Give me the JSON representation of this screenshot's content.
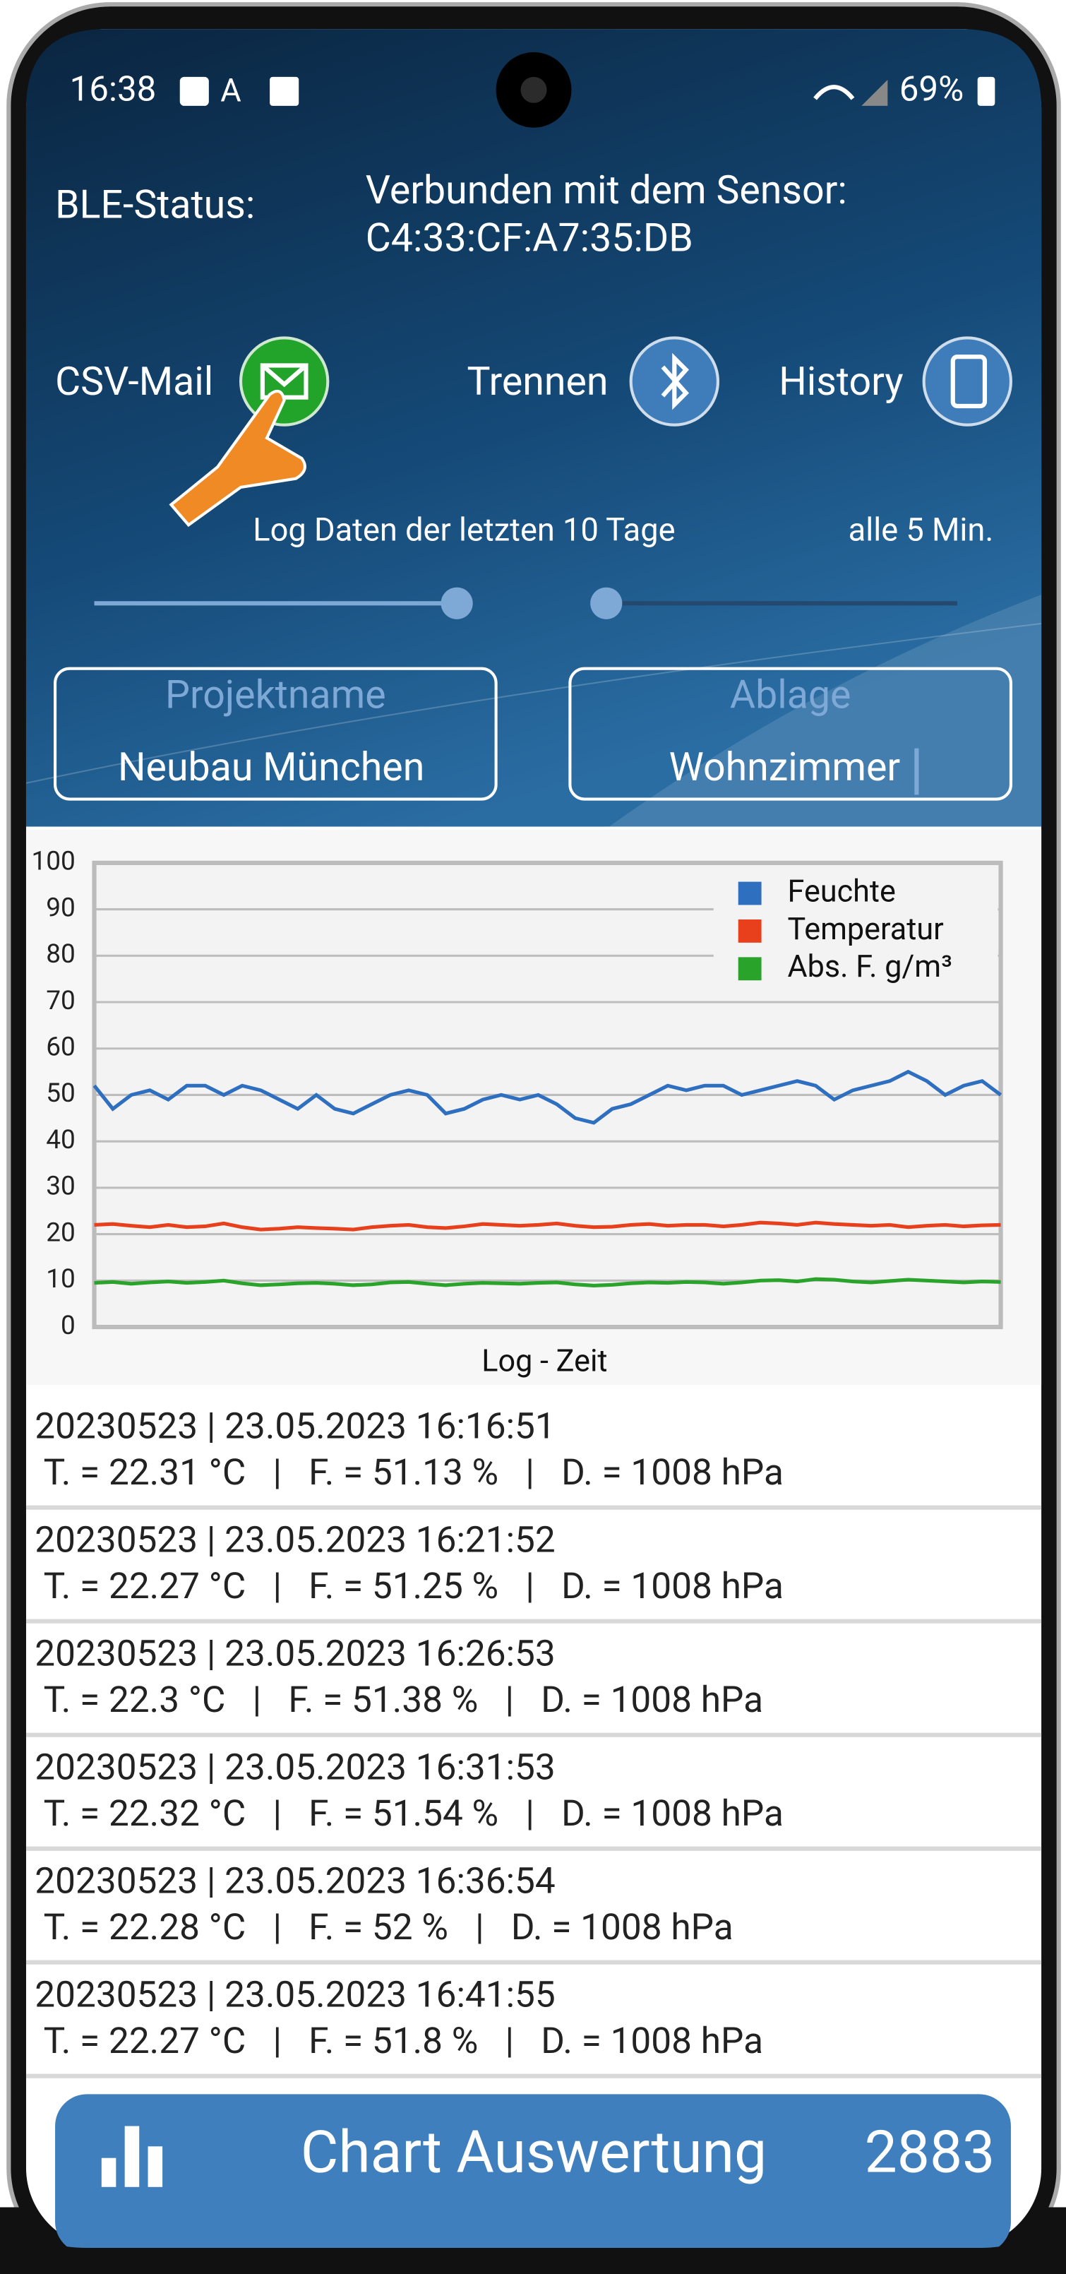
{
  "status": {
    "time": "16:38",
    "battery": "69%"
  },
  "ble": {
    "label": "BLE-Status:",
    "line1": "Verbunden mit dem Sensor:",
    "line2": "C4:33:CF:A7:35:DB"
  },
  "actions": [
    {
      "label": "CSV-Mail"
    },
    {
      "label": "Trennen"
    },
    {
      "label": "History"
    }
  ],
  "log_label": "Log Daten der letzten 10 Tage",
  "interval": "alle 5 Min.",
  "fields": [
    {
      "label": "Projektname",
      "value": "Neubau München"
    },
    {
      "label": "Ablage",
      "value": "Wohnzimmer"
    }
  ],
  "chart_data": {
    "type": "line",
    "x_label": "Log - Zeit",
    "ylim": [
      0,
      100
    ],
    "yticks": [
      0,
      10,
      20,
      30,
      40,
      50,
      60,
      70,
      80,
      90,
      100
    ],
    "grid": true,
    "legend": "top-right",
    "series": [
      {
        "name": "Feuchte",
        "color": "#2f6fbf",
        "values": [
          52,
          47,
          50,
          51,
          49,
          52,
          52,
          50,
          52,
          51,
          49,
          47,
          50,
          47,
          46,
          48,
          50,
          51,
          50,
          46,
          47,
          49,
          50,
          49,
          50,
          48,
          45,
          44,
          47,
          48,
          50,
          52,
          51,
          52,
          52,
          50,
          51,
          52,
          53,
          52,
          49,
          51,
          52,
          53,
          55,
          53,
          50,
          52,
          53,
          50
        ]
      },
      {
        "name": "Temperatur",
        "color": "#e8401c",
        "values": [
          22,
          22.2,
          21.8,
          21.5,
          22,
          21.5,
          21.7,
          22.3,
          21.5,
          21,
          21.2,
          21.5,
          21.3,
          21.2,
          21,
          21.5,
          21.8,
          22,
          21.5,
          21.3,
          21.7,
          22.2,
          22,
          21.8,
          22,
          22.3,
          21.8,
          21.5,
          21.6,
          22,
          22.2,
          21.8,
          22,
          22,
          21.7,
          22,
          22.5,
          22.3,
          22,
          22.5,
          22.2,
          22,
          21.8,
          22,
          21.5,
          21.8,
          22,
          21.7,
          21.9,
          22
        ]
      },
      {
        "name": "Abs. F. g/m³",
        "color": "#2aa32a",
        "values": [
          9.5,
          9.7,
          9.3,
          9.6,
          9.8,
          9.5,
          9.7,
          10,
          9.4,
          9,
          9.2,
          9.4,
          9.5,
          9.3,
          9,
          9.2,
          9.6,
          9.7,
          9.3,
          9,
          9.3,
          9.5,
          9.4,
          9.3,
          9.5,
          9.6,
          9.2,
          8.9,
          9.1,
          9.4,
          9.6,
          9.5,
          9.7,
          9.6,
          9.3,
          9.6,
          10,
          10.1,
          9.8,
          10.3,
          10.2,
          9.8,
          9.6,
          9.9,
          10.2,
          10,
          9.8,
          9.6,
          9.8,
          9.7
        ]
      }
    ]
  },
  "log": [
    {
      "header": "20230523 | 23.05.2023 16:16:51",
      "line": "T. = 22.31 °C   |   F. = 51.13 %   |   D. = 1008 hPa"
    },
    {
      "header": "20230523 | 23.05.2023 16:21:52",
      "line": "T. = 22.27 °C   |   F. = 51.25 %   |   D. = 1008 hPa"
    },
    {
      "header": "20230523 | 23.05.2023 16:26:53",
      "line": "T. = 22.3 °C   |   F. = 51.38 %   |   D. = 1008 hPa"
    },
    {
      "header": "20230523 | 23.05.2023 16:31:53",
      "line": "T. = 22.32 °C   |   F. = 51.54 %   |   D. = 1008 hPa"
    },
    {
      "header": "20230523 | 23.05.2023 16:36:54",
      "line": "T. = 22.28 °C   |   F. = 52 %   |   D. = 1008 hPa"
    },
    {
      "header": "20230523 | 23.05.2023 16:41:55",
      "line": "T. = 22.27 °C   |   F. = 51.8 %   |   D. = 1008 hPa"
    }
  ],
  "footer": {
    "label": "Chart Auswertung",
    "count": "2883"
  }
}
